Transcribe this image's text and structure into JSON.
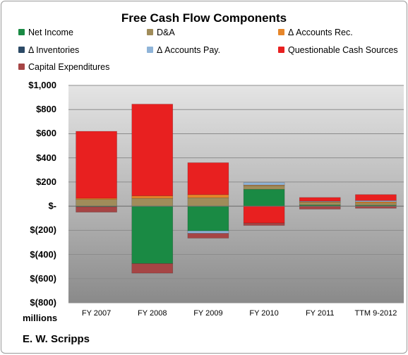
{
  "chart_data": {
    "type": "bar",
    "stacked": true,
    "title": "Free Cash Flow Components",
    "units_label": "millions",
    "company": "E. W. Scripps",
    "categories": [
      "FY 2007",
      "FY 2008",
      "FY 2009",
      "FY 2010",
      "FY 2011",
      "TTM 9-2012"
    ],
    "ylim": [
      -800,
      1000
    ],
    "ytick_values": [
      -800,
      -600,
      -400,
      -200,
      0,
      200,
      400,
      600,
      800,
      1000
    ],
    "ytick_labels": [
      "$(800)",
      "$(600)",
      "$(400)",
      "$(200)",
      "$-",
      "$200",
      "$400",
      "$600",
      "$800",
      "$1,000"
    ],
    "legend_position": "top",
    "series": [
      {
        "name": "Net Income",
        "color": "#1a8a44",
        "values": [
          -5,
          -475,
          -205,
          140,
          10,
          8
        ]
      },
      {
        "name": "D&A",
        "color": "#a08c5a",
        "values": [
          55,
          65,
          70,
          30,
          22,
          18
        ]
      },
      {
        "name": "Δ Accounts Rec.",
        "color": "#e6862a",
        "values": [
          10,
          20,
          25,
          5,
          5,
          10
        ]
      },
      {
        "name": "Δ Inventories",
        "color": "#2c4a66",
        "values": [
          0,
          0,
          0,
          0,
          0,
          0
        ]
      },
      {
        "name": "Δ Accounts Pay.",
        "color": "#8fb4d8",
        "values": [
          0,
          0,
          -20,
          20,
          5,
          10
        ]
      },
      {
        "name": "Questionable Cash Sources",
        "color": "#e82020",
        "values": [
          555,
          760,
          265,
          -140,
          30,
          50
        ]
      },
      {
        "name": "Capital Expenditures",
        "color": "#a64545",
        "values": [
          -45,
          -80,
          -40,
          -20,
          -25,
          -18
        ]
      }
    ]
  }
}
